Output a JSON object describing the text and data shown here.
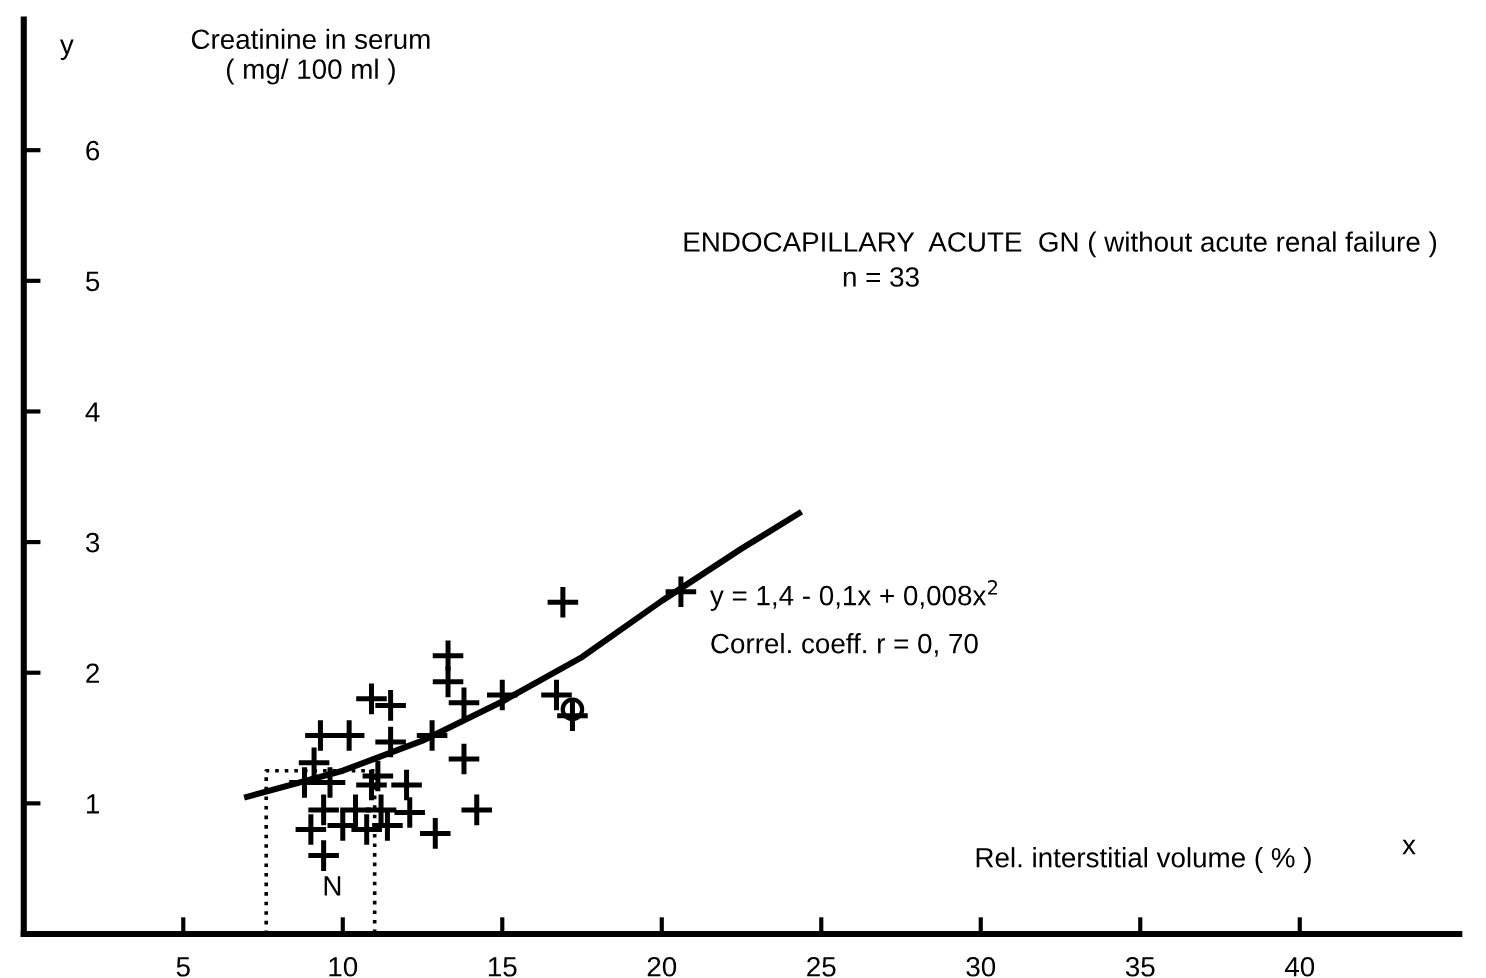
{
  "chart_data": {
    "type": "scatter",
    "title": "ENDOCAPILLARY  ACUTE  GN ( without acute renal failure )",
    "subtitle": "n = 33",
    "xlabel": "Rel. interstitial volume ( % )",
    "ylabel": "Creatinine in serum\n( mg/ 100 ml )",
    "xlim": [
      0,
      45
    ],
    "ylim": [
      0,
      7
    ],
    "xticks": [
      5,
      10,
      15,
      20,
      25,
      30,
      35,
      40
    ],
    "yticks": [
      1,
      2,
      3,
      4,
      5,
      6
    ],
    "grid": false,
    "legend": false,
    "annotations": [
      "N",
      "y = 1,4 - 0,1x + 0,008x$^{2}$",
      "Correl. coeff. r = 0, 70",
      "y",
      "x"
    ],
    "series": [
      {
        "marker": "cross",
        "color": "#000000",
        "x": [
          10.9,
          11.5,
          11.5,
          9.3,
          10.2,
          9.1,
          8.8,
          9.6,
          9.4,
          9.0,
          9.4,
          10.0,
          10.4,
          10.75,
          10.9,
          11.1,
          11.2,
          11.4,
          12.0,
          12.1,
          12.9,
          12.8,
          13.3,
          13.3,
          13.8,
          15.0,
          13.8,
          14.2,
          16.9,
          16.7,
          17.2,
          20.6
        ],
        "values": [
          1.8,
          1.75,
          1.47,
          1.52,
          1.52,
          1.31,
          1.16,
          1.16,
          0.95,
          0.8,
          0.6,
          0.83,
          0.95,
          0.8,
          1.14,
          1.21,
          0.95,
          0.83,
          1.14,
          0.93,
          0.77,
          1.52,
          2.13,
          1.93,
          1.77,
          1.83,
          1.34,
          0.95,
          2.54,
          1.83,
          1.67,
          2.62
        ]
      },
      {
        "marker": "circle",
        "color": "#000000",
        "x": [
          17.2
        ],
        "values": [
          1.72
        ]
      },
      {
        "type": "line",
        "marker": "none",
        "line_style": "solid",
        "color": "#000000",
        "x": [
          7.0,
          10,
          12.5,
          15,
          17.5,
          20,
          22.5,
          24.3
        ],
        "values": [
          1.05,
          1.25,
          1.48,
          1.78,
          2.12,
          2.55,
          2.95,
          3.22
        ]
      },
      {
        "type": "line",
        "marker": "none",
        "line_style": "dotted",
        "color": "#000000",
        "x": [
          7.6,
          7.6,
          11.0,
          11.0
        ],
        "values": [
          0,
          1.25,
          1.25,
          0
        ]
      }
    ]
  }
}
